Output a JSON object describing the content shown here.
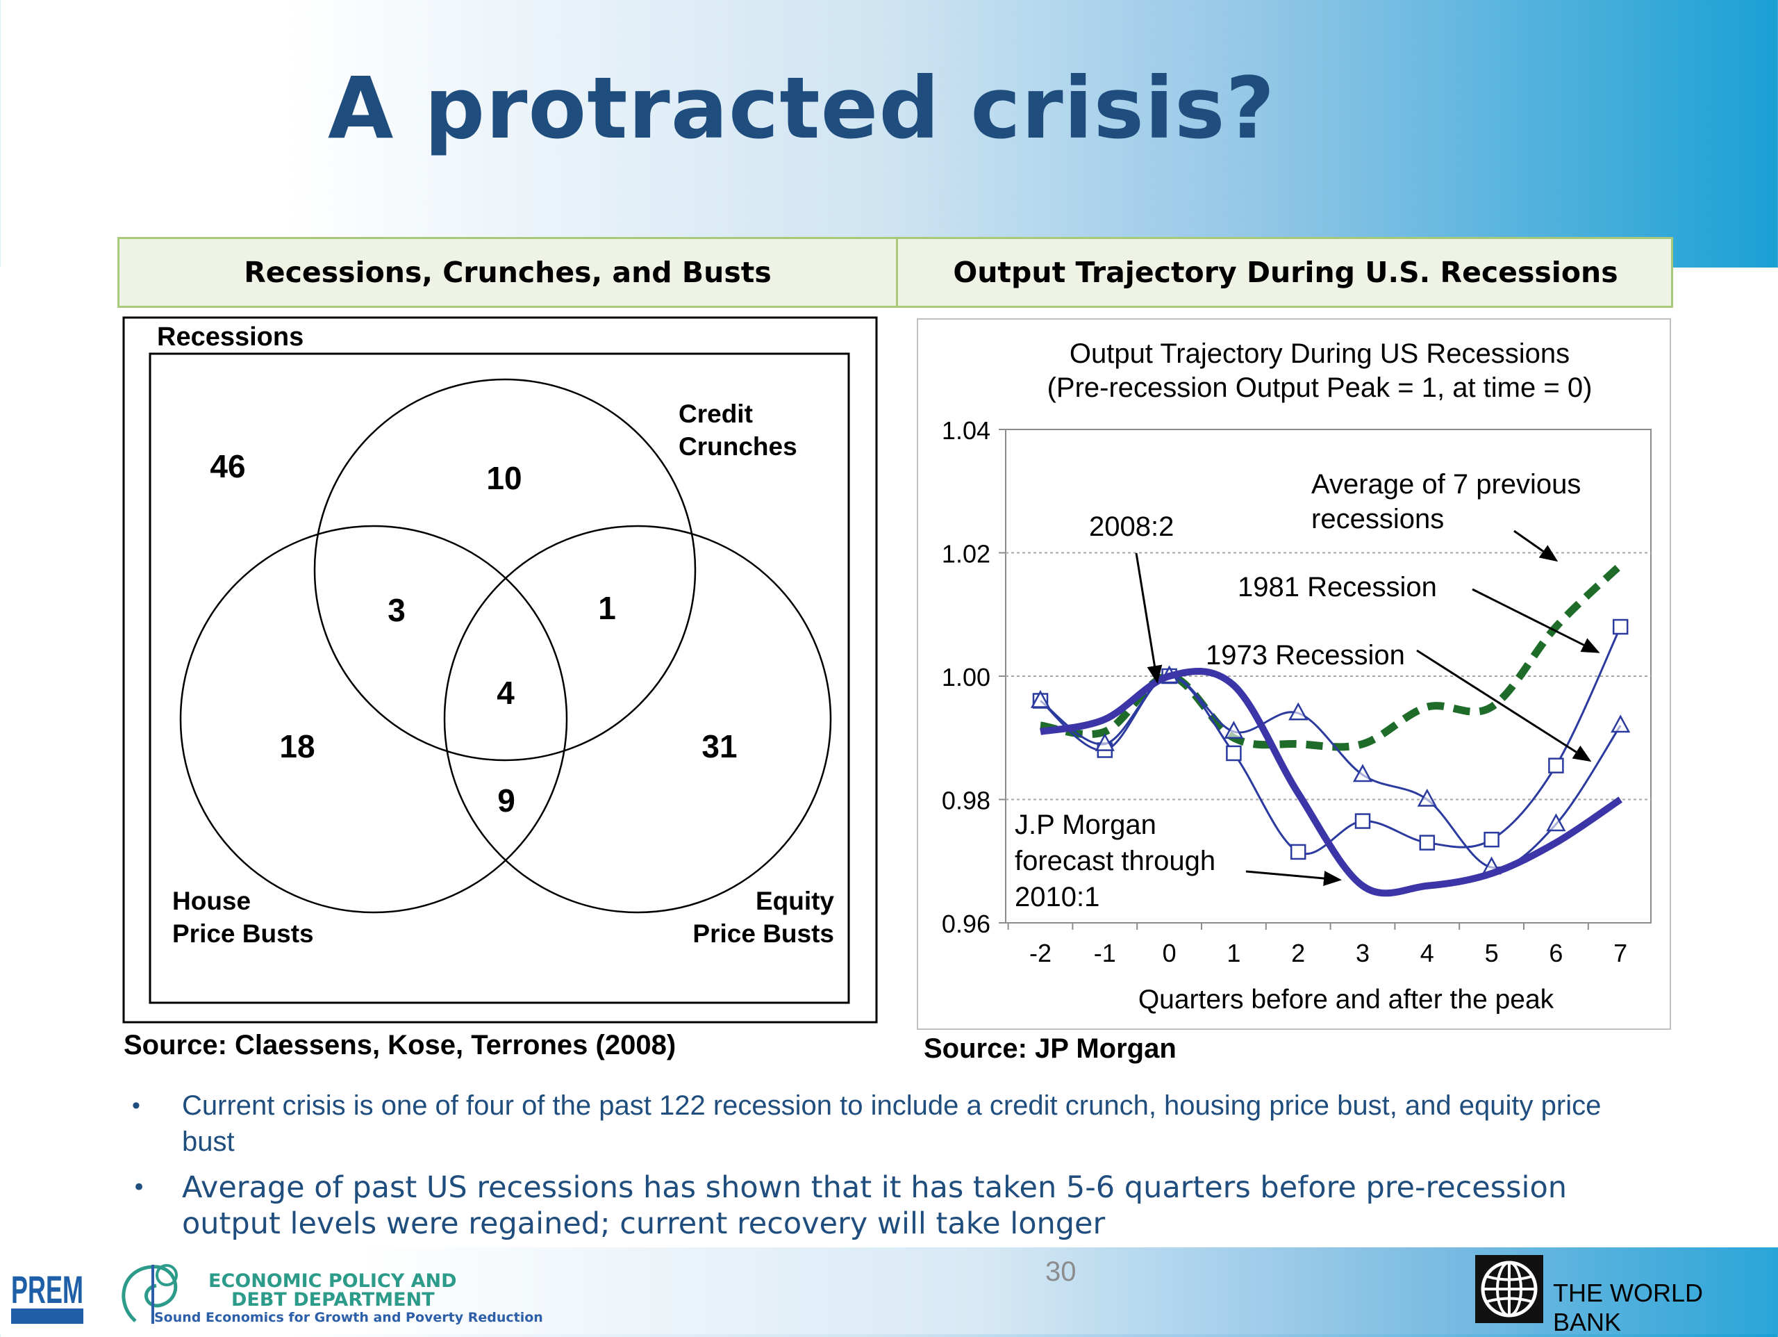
{
  "slide": {
    "title": "A protracted crisis?",
    "page_number": "30",
    "header_left": "Recessions, Crunches, and Busts",
    "header_right": "Output Trajectory During U.S. Recessions",
    "source_left": "Source: Claessens, Kose, Terrones (2008)",
    "source_right": "Source: JP Morgan",
    "bullets": [
      "Current crisis is one of four of the past 122 recession to include a credit crunch, housing price bust, and equity price bust",
      "Average of past US recessions has shown that it has taken 5-6 quarters before pre-recession output levels were regained; current recovery will take longer"
    ],
    "bullet_marker": "•"
  },
  "venn": {
    "outer_label": "Recessions",
    "set_credit": [
      "Credit",
      "Crunches"
    ],
    "set_house": [
      "House",
      "Price Busts"
    ],
    "set_equity": [
      "Equity",
      "Price Busts"
    ],
    "counts": {
      "recessions_only": "46",
      "credit_only": "10",
      "house_credit": "3",
      "credit_equity": "1",
      "all_three": "4",
      "house_only": "18",
      "equity_only": "31",
      "house_equity": "9"
    }
  },
  "footer": {
    "logo_prem": "PREM",
    "dept_line1": "ECONOMIC POLICY AND",
    "dept_line2": "DEBT DEPARTMENT",
    "dept_tagline": "Sound Economics for Growth and Poverty Reduction",
    "world_bank": "THE WORLD BANK",
    "colors": {
      "dept_text": "#2c9b8a",
      "tagline": "#2c5fa8"
    }
  },
  "chart_data": {
    "type": "line",
    "title": "Output Trajectory During US Recessions",
    "subtitle": "(Pre-recession Output Peak = 1, at time = 0)",
    "xlabel": "Quarters before and after the peak",
    "ylabel": "",
    "x": [
      -2,
      -1,
      0,
      1,
      2,
      3,
      4,
      5,
      6,
      7
    ],
    "x_ticks": [
      "-2",
      "-1",
      "0",
      "1",
      "2",
      "3",
      "4",
      "5",
      "6",
      "7"
    ],
    "ylim": [
      0.96,
      1.04
    ],
    "y_ticks": [
      "0.96",
      "0.98",
      "1.00",
      "1.02",
      "1.04"
    ],
    "grid": "horizontal dashed",
    "series": [
      {
        "key": "avg",
        "x": [
          -2,
          -1,
          0,
          1,
          2,
          3,
          4,
          5,
          6,
          7
        ],
        "values": [
          0.992,
          0.991,
          1.0,
          0.99,
          0.989,
          0.989,
          0.995,
          0.995,
          1.008,
          1.018
        ],
        "color": "#1e6b2a",
        "style": "dashed",
        "marker": "none"
      },
      {
        "key": "r1981",
        "x": [
          -2,
          -1,
          0,
          1,
          2,
          3,
          4,
          5,
          6,
          7
        ],
        "values": [
          0.996,
          0.988,
          1.0,
          0.9875,
          0.9715,
          0.9765,
          0.973,
          0.9735,
          0.9855,
          1.008
        ],
        "color": "#2b3a9e",
        "style": "solid",
        "marker": "square"
      },
      {
        "key": "r1973",
        "x": [
          -2,
          -1,
          0,
          1,
          2,
          3,
          4,
          5,
          6,
          7
        ],
        "values": [
          0.996,
          0.989,
          1.0,
          0.991,
          0.994,
          0.984,
          0.98,
          0.969,
          0.976,
          0.992
        ],
        "color": "#2b3a9e",
        "style": "solid",
        "marker": "triangle"
      },
      {
        "key": "jpm",
        "x": [
          -2,
          -1,
          0,
          1,
          2,
          3,
          4,
          5,
          6,
          7
        ],
        "values": [
          0.991,
          0.993,
          1.0,
          0.9985,
          0.981,
          0.966,
          0.966,
          0.968,
          0.973,
          0.98
        ],
        "color": "#3b35a8",
        "style": "thick",
        "marker": "none"
      }
    ],
    "annotations": [
      {
        "lines": [
          "Average of 7 previous",
          "recessions"
        ]
      },
      {
        "lines": [
          "2008:2"
        ]
      },
      {
        "lines": [
          "1981 Recession"
        ]
      },
      {
        "lines": [
          "1973 Recession"
        ]
      },
      {
        "lines": [
          "J.P Morgan",
          "forecast through",
          "2010:1"
        ]
      }
    ]
  }
}
